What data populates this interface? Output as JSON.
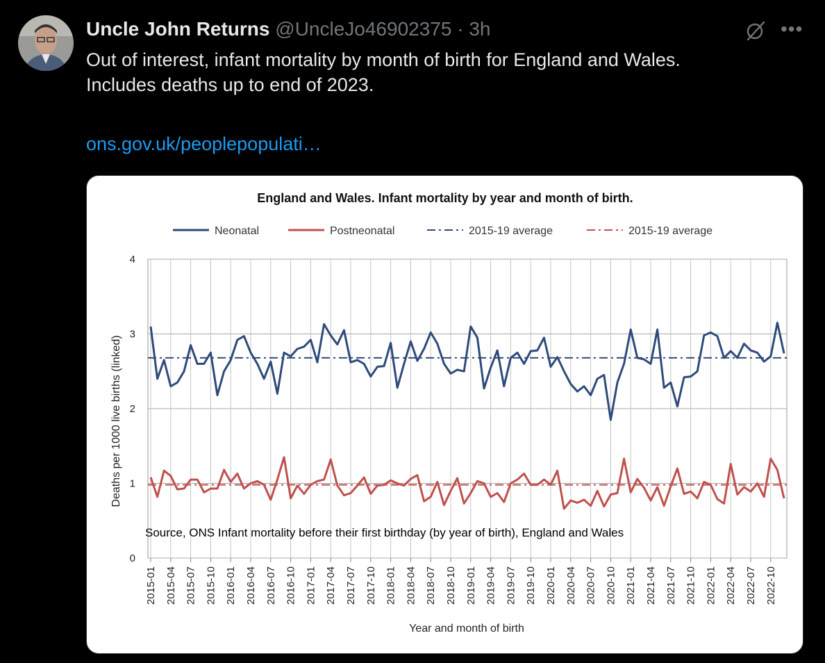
{
  "tweet": {
    "author_name": "Uncle John Returns",
    "handle": "@UncleJo46902375",
    "separator": "·",
    "time": "3h",
    "text_line1": "Out of interest, infant mortality by month of birth for England and Wales.",
    "text_line2": "Includes deaths up to end of 2023.",
    "link": "ons.gov.uk/peoplepopulati…",
    "more_icon": "more-horizontal-icon",
    "grok_icon": "grok-slash-icon"
  },
  "chart_data": {
    "type": "line",
    "title": "England and Wales. Infant mortality by year and month of birth.",
    "xlabel": "Year and month of birth",
    "ylabel": "Deaths per 1000 live births (linked)",
    "ylim": [
      0,
      4
    ],
    "yticks": [
      "0",
      "1",
      "2",
      "3",
      "4"
    ],
    "grid": true,
    "legend_position": "top",
    "annotation": "Source, ONS Infant mortality before their first birthday (by year of birth), England and Wales",
    "tick_labels": [
      "2015-01",
      "2015-04",
      "2015-07",
      "2015-10",
      "2016-01",
      "2016-04",
      "2016-07",
      "2016-10",
      "2017-01",
      "2017-04",
      "2017-07",
      "2017-10",
      "2018-01",
      "2018-04",
      "2018-07",
      "2018-10",
      "2019-01",
      "2019-04",
      "2019-07",
      "2019-10",
      "2020-01",
      "2020-04",
      "2020-07",
      "2020-10",
      "2021-01",
      "2021-04",
      "2021-07",
      "2021-10",
      "2022-01",
      "2022-04",
      "2022-07",
      "2022-10"
    ],
    "x_start": "2015-01",
    "x_end": "2022-12",
    "series": [
      {
        "name": "Neonatal",
        "color": "#2e4a7a",
        "style": "solid",
        "values": [
          3.1,
          2.4,
          2.65,
          2.3,
          2.35,
          2.5,
          2.85,
          2.6,
          2.6,
          2.75,
          2.18,
          2.5,
          2.65,
          2.92,
          2.97,
          2.75,
          2.6,
          2.4,
          2.63,
          2.2,
          2.75,
          2.7,
          2.8,
          2.83,
          2.92,
          2.62,
          3.13,
          2.98,
          2.86,
          3.05,
          2.62,
          2.65,
          2.6,
          2.43,
          2.56,
          2.57,
          2.88,
          2.28,
          2.6,
          2.9,
          2.64,
          2.8,
          3.02,
          2.87,
          2.6,
          2.47,
          2.52,
          2.5,
          3.1,
          2.95,
          2.27,
          2.55,
          2.78,
          2.3,
          2.68,
          2.75,
          2.6,
          2.77,
          2.78,
          2.95,
          2.56,
          2.69,
          2.5,
          2.33,
          2.23,
          2.3,
          2.18,
          2.4,
          2.45,
          1.85,
          2.35,
          2.6,
          3.06,
          2.68,
          2.66,
          2.6,
          3.06,
          2.28,
          2.35,
          2.03,
          2.42,
          2.43,
          2.5,
          2.98,
          3.02,
          2.97,
          2.68,
          2.77,
          2.68,
          2.87,
          2.78,
          2.75,
          2.63,
          2.7,
          3.15,
          2.74
        ]
      },
      {
        "name": "Postneonatal",
        "color": "#c0504d",
        "style": "solid",
        "values": [
          1.08,
          0.82,
          1.17,
          1.1,
          0.92,
          0.93,
          1.05,
          1.05,
          0.88,
          0.93,
          0.93,
          1.18,
          1.02,
          1.13,
          0.93,
          1.0,
          1.03,
          0.98,
          0.78,
          1.05,
          1.35,
          0.8,
          0.97,
          0.86,
          0.98,
          1.03,
          1.05,
          1.32,
          0.97,
          0.84,
          0.87,
          0.97,
          1.08,
          0.86,
          0.97,
          0.98,
          1.04,
          1.0,
          0.97,
          1.06,
          1.11,
          0.76,
          0.82,
          1.02,
          0.71,
          0.9,
          1.07,
          0.73,
          0.87,
          1.03,
          1.0,
          0.82,
          0.87,
          0.75,
          1.0,
          1.05,
          1.13,
          0.98,
          0.98,
          1.05,
          0.98,
          1.17,
          0.66,
          0.77,
          0.74,
          0.78,
          0.7,
          0.9,
          0.69,
          0.85,
          0.87,
          1.33,
          0.88,
          1.06,
          0.94,
          0.77,
          0.95,
          0.7,
          0.96,
          1.2,
          0.86,
          0.89,
          0.8,
          1.02,
          0.98,
          0.79,
          0.73,
          1.26,
          0.85,
          0.95,
          0.89,
          1.0,
          0.82,
          1.33,
          1.18,
          0.8
        ]
      },
      {
        "name": "2015-19 average",
        "color": "#2e4a7a",
        "style": "dashdot",
        "constant": 2.68
      },
      {
        "name": "2015-19 average",
        "color": "#c0504d",
        "style": "dashdot",
        "constant": 0.98
      }
    ]
  }
}
